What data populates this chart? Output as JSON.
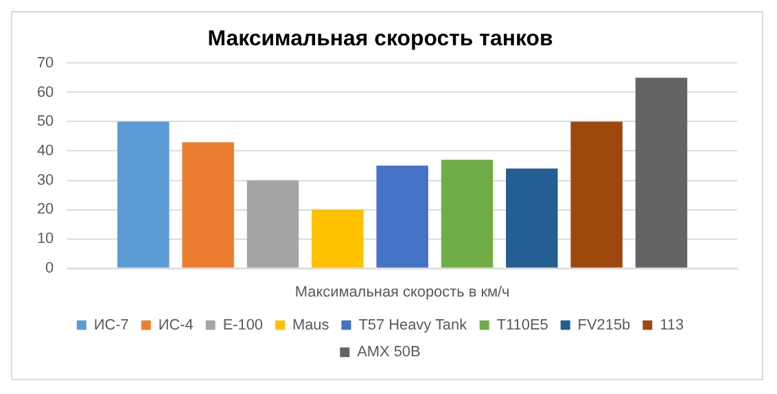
{
  "chart_data": {
    "type": "bar",
    "title": "Максимальная скорость танков",
    "categories": [
      "Максимальная скорость в км/ч"
    ],
    "series": [
      {
        "name": "ИС-7",
        "color": "#5b9bd5",
        "values": [
          50
        ]
      },
      {
        "name": "ИС-4",
        "color": "#ed7d31",
        "values": [
          43
        ]
      },
      {
        "name": "E-100",
        "color": "#a5a5a5",
        "values": [
          30
        ]
      },
      {
        "name": "Maus",
        "color": "#ffc000",
        "values": [
          20
        ]
      },
      {
        "name": "T57 Heavy Tank",
        "color": "#4472c4",
        "values": [
          35
        ]
      },
      {
        "name": "T110E5",
        "color": "#70ad47",
        "values": [
          37
        ]
      },
      {
        "name": "FV215b",
        "color": "#255e91",
        "values": [
          34
        ]
      },
      {
        "name": "113",
        "color": "#9e480e",
        "values": [
          50
        ]
      },
      {
        "name": "AMX 50B",
        "color": "#636363",
        "values": [
          65
        ]
      }
    ],
    "ylim": [
      0,
      70
    ],
    "yticks": [
      0,
      10,
      20,
      30,
      40,
      50,
      60,
      70
    ],
    "grid": "y",
    "legend": "bottom"
  }
}
